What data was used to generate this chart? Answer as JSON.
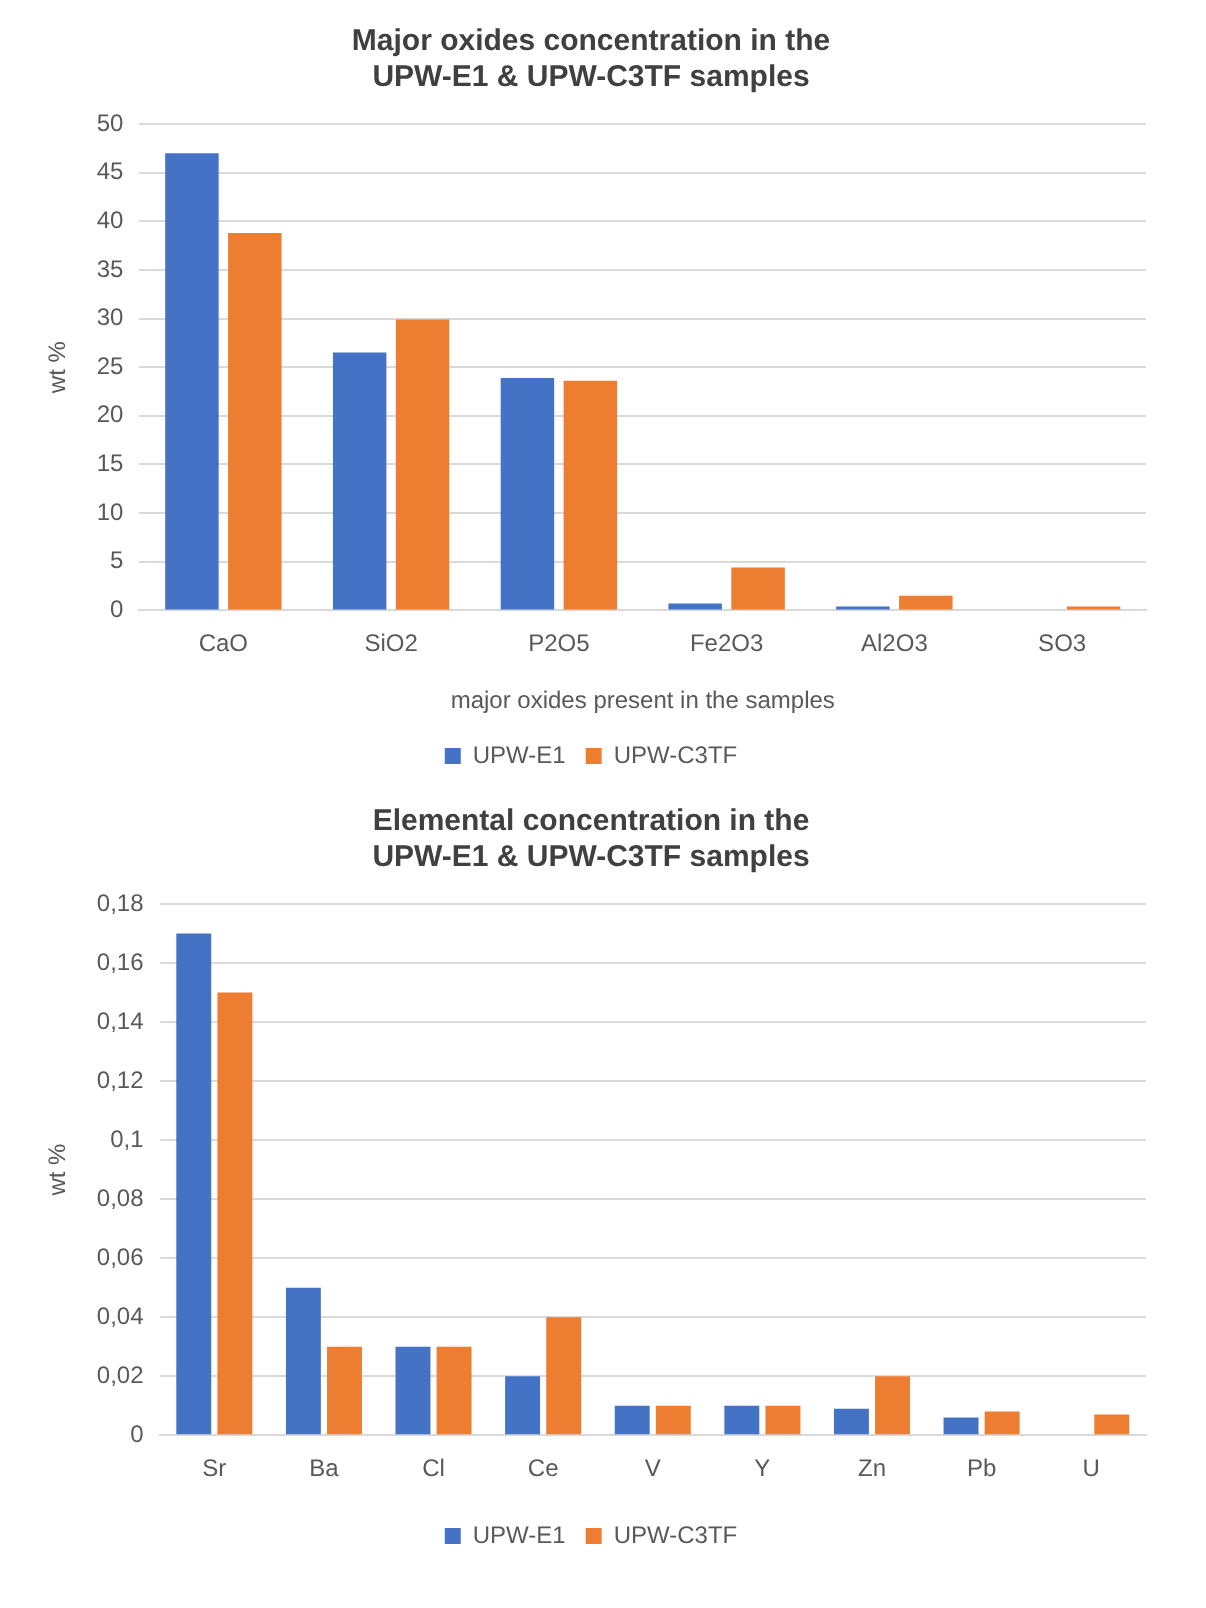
{
  "chart_data": [
    {
      "type": "bar",
      "title": "Major oxides concentration in the\nUPW-E1 & UPW-C3TF samples",
      "xlabel": "major oxides present in the samples",
      "ylabel": "wt %",
      "categories": [
        "CaO",
        "SiO2",
        "P2O5",
        "Fe2O3",
        "Al2O3",
        "SO3"
      ],
      "series": [
        {
          "name": "UPW-E1",
          "color": "#4472c4",
          "values": [
            47,
            26.5,
            23.9,
            0.7,
            0.4,
            null
          ]
        },
        {
          "name": "UPW-C3TF",
          "color": "#ed7d31",
          "values": [
            38.8,
            29.9,
            23.6,
            4.4,
            1.5,
            0.4
          ]
        }
      ],
      "ylim": [
        0,
        50
      ],
      "yticks": [
        0,
        5,
        10,
        15,
        20,
        25,
        30,
        35,
        40,
        45,
        50
      ],
      "grid": "y",
      "legend": "bottom"
    },
    {
      "type": "bar",
      "title": "Elemental concentration in the\nUPW-E1 & UPW-C3TF samples",
      "ylabel": "wt %",
      "categories": [
        "Sr",
        "Ba",
        "Cl",
        "Ce",
        "V",
        "Y",
        "Zn",
        "Pb",
        "U"
      ],
      "series": [
        {
          "name": "UPW-E1",
          "color": "#4472c4",
          "values": [
            0.17,
            0.05,
            0.03,
            0.02,
            0.01,
            0.01,
            0.009,
            0.006,
            null
          ]
        },
        {
          "name": "UPW-C3TF",
          "color": "#ed7d31",
          "values": [
            0.15,
            0.03,
            0.03,
            0.04,
            0.01,
            0.01,
            0.02,
            0.008,
            0.007
          ]
        }
      ],
      "ylim": [
        0,
        0.18
      ],
      "yticks": [
        0,
        {
          "value": 0.02,
          "label": "0,02"
        },
        {
          "value": 0.04,
          "label": "0,04"
        },
        {
          "value": 0.06,
          "label": "0,06"
        },
        {
          "value": 0.08,
          "label": "0,08"
        },
        {
          "value": 0.1,
          "label": "0,1"
        },
        {
          "value": 0.12,
          "label": "0,12"
        },
        {
          "value": 0.14,
          "label": "0,14"
        },
        {
          "value": 0.16,
          "label": "0,16"
        },
        {
          "value": 0.18,
          "label": "0,18"
        }
      ],
      "grid": "y",
      "legend": "bottom"
    }
  ]
}
